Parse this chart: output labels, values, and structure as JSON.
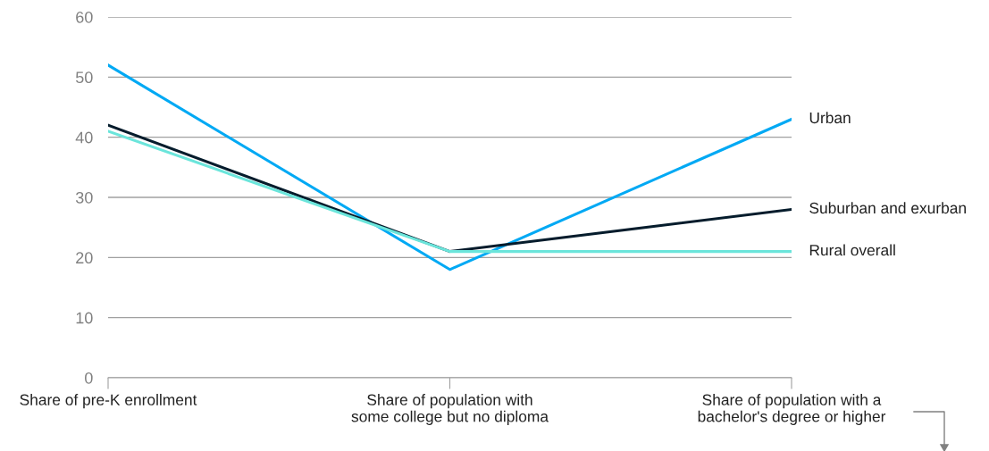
{
  "chart_data": {
    "type": "line",
    "categories": [
      "Share of pre-K enrollment",
      "Share of population with\nsome college but no diploma",
      "Share of population with a\nbachelor's degree or higher"
    ],
    "series": [
      {
        "name": "Urban",
        "color": "#00a9f4",
        "values": [
          52,
          18,
          43
        ]
      },
      {
        "name": "Suburban and exurban",
        "color": "#051c2c",
        "values": [
          42,
          21,
          28
        ]
      },
      {
        "name": "Rural overall",
        "color": "#6be5db",
        "values": [
          41,
          21,
          21
        ]
      }
    ],
    "ylim": [
      0,
      60
    ],
    "yticks": [
      0,
      10,
      20,
      30,
      40,
      50,
      60
    ],
    "grid": "y",
    "legend": false,
    "marker": "none",
    "line_style": "solid"
  }
}
